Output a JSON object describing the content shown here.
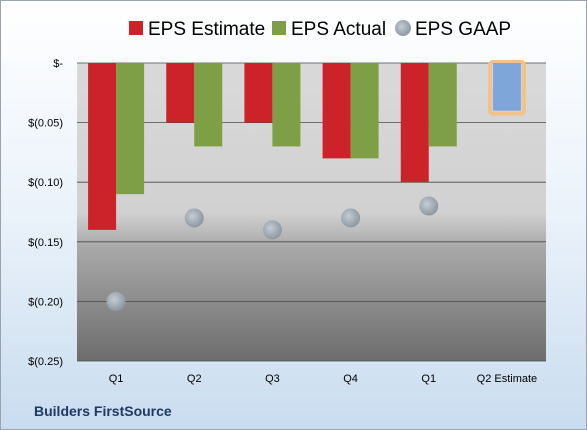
{
  "chart_data": {
    "type": "bar",
    "title": "",
    "xlabel": "",
    "ylabel": "",
    "categories": [
      "Q1",
      "Q2",
      "Q3",
      "Q4",
      "Q1",
      "Q2 Estimate"
    ],
    "series": [
      {
        "name": "EPS Estimate",
        "type": "bar",
        "color": "#cc2229",
        "values": [
          -0.14,
          -0.05,
          -0.05,
          -0.08,
          -0.1,
          null
        ]
      },
      {
        "name": "EPS Actual",
        "type": "bar",
        "color": "#7f9f47",
        "values": [
          -0.11,
          -0.07,
          -0.07,
          -0.08,
          -0.07,
          -0.04
        ]
      },
      {
        "name": "EPS GAAP",
        "type": "scatter",
        "color": "#a8b1bb",
        "values": [
          -0.2,
          -0.13,
          -0.14,
          -0.13,
          -0.12,
          null
        ]
      }
    ],
    "highlight": {
      "category_index": 5,
      "series": "EPS Actual",
      "fill": "#7ea6d8",
      "outline": "#f2c28a"
    },
    "ylim": [
      -0.25,
      0
    ],
    "yticks": [
      0,
      -0.05,
      -0.1,
      -0.15,
      -0.2,
      -0.25
    ],
    "ytick_labels": [
      "$-",
      "$(0.05)",
      "$(0.10)",
      "$(0.15)",
      "$(0.20)",
      "$(0.25)"
    ],
    "grid": true,
    "legend_position": "top"
  },
  "footer": {
    "company": "Builders FirstSource"
  }
}
